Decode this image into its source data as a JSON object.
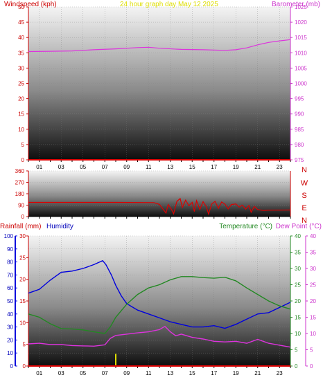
{
  "chart_data": [
    {
      "type": "line",
      "title": "24 hour graph day   May 12 2025",
      "ylabel_left": "Windspeed (kph)",
      "ylabel_right": "Barometer (mb)",
      "x_ticks": [
        "01",
        "03",
        "05",
        "07",
        "09",
        "11",
        "13",
        "15",
        "17",
        "19",
        "21",
        "23"
      ],
      "ylim_left": [
        0,
        50
      ],
      "ylim_right": [
        975,
        1025
      ],
      "yticks_left": [
        0,
        5,
        10,
        15,
        20,
        25,
        30,
        35,
        40,
        45,
        50
      ],
      "yticks_right": [
        975,
        980,
        985,
        990,
        995,
        1000,
        1005,
        1010,
        1015,
        1020,
        1025
      ],
      "series": [
        {
          "axis": "left",
          "color": "#dd0000",
          "points": [
            [
              0,
              0
            ],
            [
              24,
              0
            ]
          ]
        },
        {
          "axis": "right",
          "color": "#dd33dd",
          "points": [
            [
              0,
              1010.4
            ],
            [
              2,
              1010.5
            ],
            [
              4,
              1010.6
            ],
            [
              6,
              1011.0
            ],
            [
              8,
              1011.3
            ],
            [
              10,
              1011.7
            ],
            [
              11,
              1011.8
            ],
            [
              12,
              1011.5
            ],
            [
              14,
              1011.1
            ],
            [
              16,
              1011.0
            ],
            [
              18,
              1010.8
            ],
            [
              19,
              1011.0
            ],
            [
              20,
              1011.6
            ],
            [
              21,
              1012.6
            ],
            [
              22,
              1013.4
            ],
            [
              23,
              1013.9
            ],
            [
              24,
              1014.3
            ]
          ]
        }
      ]
    },
    {
      "type": "line",
      "yticks_left": [
        0,
        90,
        180,
        270,
        360
      ],
      "ylim_left": [
        0,
        360
      ],
      "direction_labels": [
        "N",
        "W",
        "S",
        "E",
        "N"
      ],
      "series": [
        {
          "axis": "left",
          "color": "#dd0000",
          "points": [
            [
              0,
              112
            ],
            [
              4,
              112
            ],
            [
              8,
              112
            ],
            [
              11.5,
              110
            ],
            [
              12,
              96
            ],
            [
              12.3,
              62
            ],
            [
              12.6,
              28
            ],
            [
              12.8,
              95
            ],
            [
              13.1,
              58
            ],
            [
              13.3,
              22
            ],
            [
              13.6,
              120
            ],
            [
              13.9,
              142
            ],
            [
              14.1,
              72
            ],
            [
              14.4,
              130
            ],
            [
              14.7,
              85
            ],
            [
              15,
              112
            ],
            [
              15.2,
              40
            ],
            [
              15.4,
              125
            ],
            [
              15.7,
              55
            ],
            [
              16,
              118
            ],
            [
              16.3,
              78
            ],
            [
              16.5,
              20
            ],
            [
              16.8,
              100
            ],
            [
              17.1,
              120
            ],
            [
              17.4,
              65
            ],
            [
              17.7,
              115
            ],
            [
              18,
              98
            ],
            [
              18.3,
              60
            ],
            [
              18.6,
              95
            ],
            [
              19,
              100
            ],
            [
              19.3,
              75
            ],
            [
              19.6,
              90
            ],
            [
              19.9,
              58
            ],
            [
              20.2,
              88
            ],
            [
              20.4,
              35
            ],
            [
              20.7,
              80
            ],
            [
              21,
              55
            ],
            [
              21.5,
              48
            ],
            [
              22,
              50
            ],
            [
              24,
              52
            ]
          ]
        }
      ]
    },
    {
      "type": "line",
      "ylabel_left_outer": "Rainfall (mm)",
      "ylabel_left_inner": "Humidity",
      "ylabel_right_inner": "Temperature (°C)",
      "ylabel_right_outer": "Dew Point (°C)",
      "x_ticks": [
        "01",
        "03",
        "05",
        "07",
        "09",
        "11",
        "13",
        "15",
        "17",
        "19",
        "21",
        "23"
      ],
      "yticks_humidity": [
        0,
        10,
        20,
        30,
        40,
        50,
        60,
        70,
        80,
        90,
        100
      ],
      "yticks_rain": [
        0,
        5,
        10,
        15,
        20,
        25,
        30
      ],
      "yticks_temp": [
        0,
        5,
        10,
        15,
        20,
        25,
        30,
        35,
        40
      ],
      "ylim_humidity": [
        0,
        100
      ],
      "ylim_rain": [
        0,
        30
      ],
      "ylim_temp": [
        0,
        40
      ],
      "series": [
        {
          "axis": "humidity",
          "color": "#0000dd",
          "points": [
            [
              0,
              56
            ],
            [
              1,
              59
            ],
            [
              2,
              66
            ],
            [
              3,
              72
            ],
            [
              4,
              73
            ],
            [
              5,
              75
            ],
            [
              6,
              78
            ],
            [
              6.8,
              81
            ],
            [
              7.1,
              78
            ],
            [
              7.6,
              70
            ],
            [
              8,
              62
            ],
            [
              8.5,
              54
            ],
            [
              9,
              48
            ],
            [
              10,
              43
            ],
            [
              11,
              40
            ],
            [
              12,
              37
            ],
            [
              13,
              34
            ],
            [
              14,
              32
            ],
            [
              15,
              30
            ],
            [
              16,
              30
            ],
            [
              17,
              31
            ],
            [
              18,
              29
            ],
            [
              19,
              32
            ],
            [
              20,
              36
            ],
            [
              21,
              40
            ],
            [
              22,
              41
            ],
            [
              23,
              45
            ],
            [
              24,
              49
            ]
          ]
        },
        {
          "axis": "temp",
          "color": "#228822",
          "points": [
            [
              0,
              16
            ],
            [
              1,
              15
            ],
            [
              2,
              13
            ],
            [
              3,
              11.5
            ],
            [
              4,
              11.4
            ],
            [
              5,
              11.1
            ],
            [
              6,
              10.5
            ],
            [
              7,
              10
            ],
            [
              7.5,
              12
            ],
            [
              8,
              15
            ],
            [
              9,
              19
            ],
            [
              10,
              22
            ],
            [
              11,
              24
            ],
            [
              12,
              25
            ],
            [
              13,
              26.5
            ],
            [
              14,
              27.5
            ],
            [
              15,
              27.5
            ],
            [
              16,
              27.2
            ],
            [
              17,
              27
            ],
            [
              18,
              27.3
            ],
            [
              19,
              26.2
            ],
            [
              20,
              24
            ],
            [
              21,
              22
            ],
            [
              22,
              20
            ],
            [
              23,
              18.5
            ],
            [
              24,
              17.5
            ]
          ]
        },
        {
          "axis": "temp",
          "color": "#dd33dd",
          "points": [
            [
              0,
              6.8
            ],
            [
              1,
              7
            ],
            [
              2,
              6.6
            ],
            [
              3,
              6.6
            ],
            [
              4,
              6.3
            ],
            [
              5,
              6.2
            ],
            [
              6,
              6.1
            ],
            [
              7,
              6.5
            ],
            [
              7.5,
              8.5
            ],
            [
              8,
              9.4
            ],
            [
              9,
              9.8
            ],
            [
              10,
              10.2
            ],
            [
              11,
              10.5
            ],
            [
              12,
              11.2
            ],
            [
              12.5,
              12.2
            ],
            [
              13,
              10.5
            ],
            [
              13.5,
              9.3
            ],
            [
              14,
              9.8
            ],
            [
              15,
              8.8
            ],
            [
              16,
              8.3
            ],
            [
              17,
              7.6
            ],
            [
              18,
              7.4
            ],
            [
              19,
              7.6
            ],
            [
              20,
              7
            ],
            [
              21,
              8.2
            ],
            [
              22,
              7
            ],
            [
              23,
              6.4
            ],
            [
              24,
              5.8
            ]
          ]
        },
        {
          "axis": "rain",
          "color": "#dd0000",
          "points": [
            [
              0,
              0
            ],
            [
              24,
              0
            ]
          ]
        }
      ],
      "rain_bars": [
        {
          "x": 8,
          "value": 2.8,
          "color": "#dddd00"
        }
      ]
    }
  ]
}
